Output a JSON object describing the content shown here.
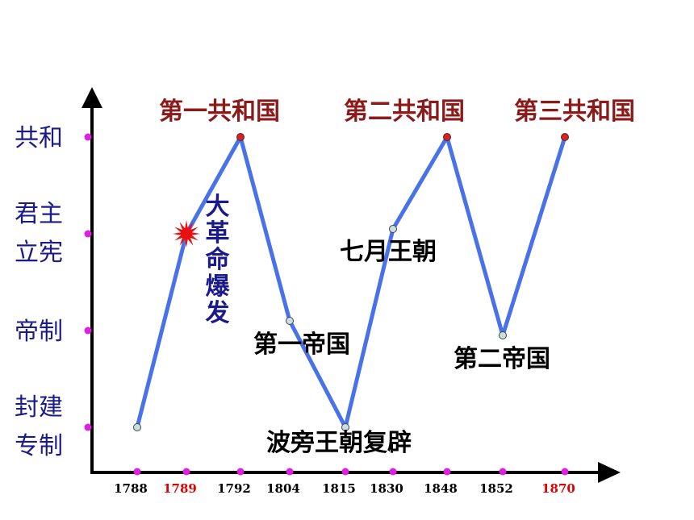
{
  "chart_data": {
    "type": "line",
    "colors": {
      "line": "#4a72e8",
      "axis": "#000000",
      "tick_dot": "#e020e0",
      "peak_dot": "#e02020",
      "valley_dot": "#c8dfe0",
      "burst": "#e81010",
      "highlight_year": "#e00000"
    },
    "x_categories": [
      "1788",
      "1789",
      "1792",
      "1804",
      "1815",
      "1830",
      "1848",
      "1852",
      "1870"
    ],
    "highlight_years": [
      "1789",
      "1870"
    ],
    "y_levels": [
      {
        "lines": [
          "封建",
          "专制"
        ]
      },
      {
        "lines": [
          "帝制"
        ]
      },
      {
        "lines": [
          "君主",
          "立宪"
        ]
      },
      {
        "lines": [
          "共和"
        ]
      }
    ],
    "points": [
      {
        "x": "1788",
        "level": 0,
        "marker": "valley"
      },
      {
        "x": "1789",
        "level": 2,
        "marker": "burst"
      },
      {
        "x": "1792",
        "level": 3,
        "marker": "peak"
      },
      {
        "x": "1804",
        "level": 1.1,
        "marker": "valley"
      },
      {
        "x": "1815",
        "level": 0,
        "marker": "valley"
      },
      {
        "x": "1830",
        "level": 2.05,
        "marker": "valley"
      },
      {
        "x": "1848",
        "level": 3,
        "marker": "peak"
      },
      {
        "x": "1852",
        "level": 0.95,
        "marker": "valley"
      },
      {
        "x": "1870",
        "level": 3,
        "marker": "peak"
      }
    ],
    "annotations": [
      {
        "id": "first-republic",
        "text": "第一共和国",
        "style": "rep"
      },
      {
        "id": "second-republic",
        "text": "第二共和国",
        "style": "rep"
      },
      {
        "id": "third-republic",
        "text": "第三共和国",
        "style": "rep"
      },
      {
        "id": "revolution",
        "text": "大革命爆发",
        "style": "vertical"
      },
      {
        "id": "first-empire",
        "text": "第一帝国",
        "style": "ann"
      },
      {
        "id": "july-monarchy",
        "text": "七月王朝",
        "style": "ann"
      },
      {
        "id": "second-empire",
        "text": "第二帝国",
        "style": "ann"
      },
      {
        "id": "bourbon-restoration",
        "text": "波旁王朝复辟",
        "style": "ann"
      }
    ]
  }
}
